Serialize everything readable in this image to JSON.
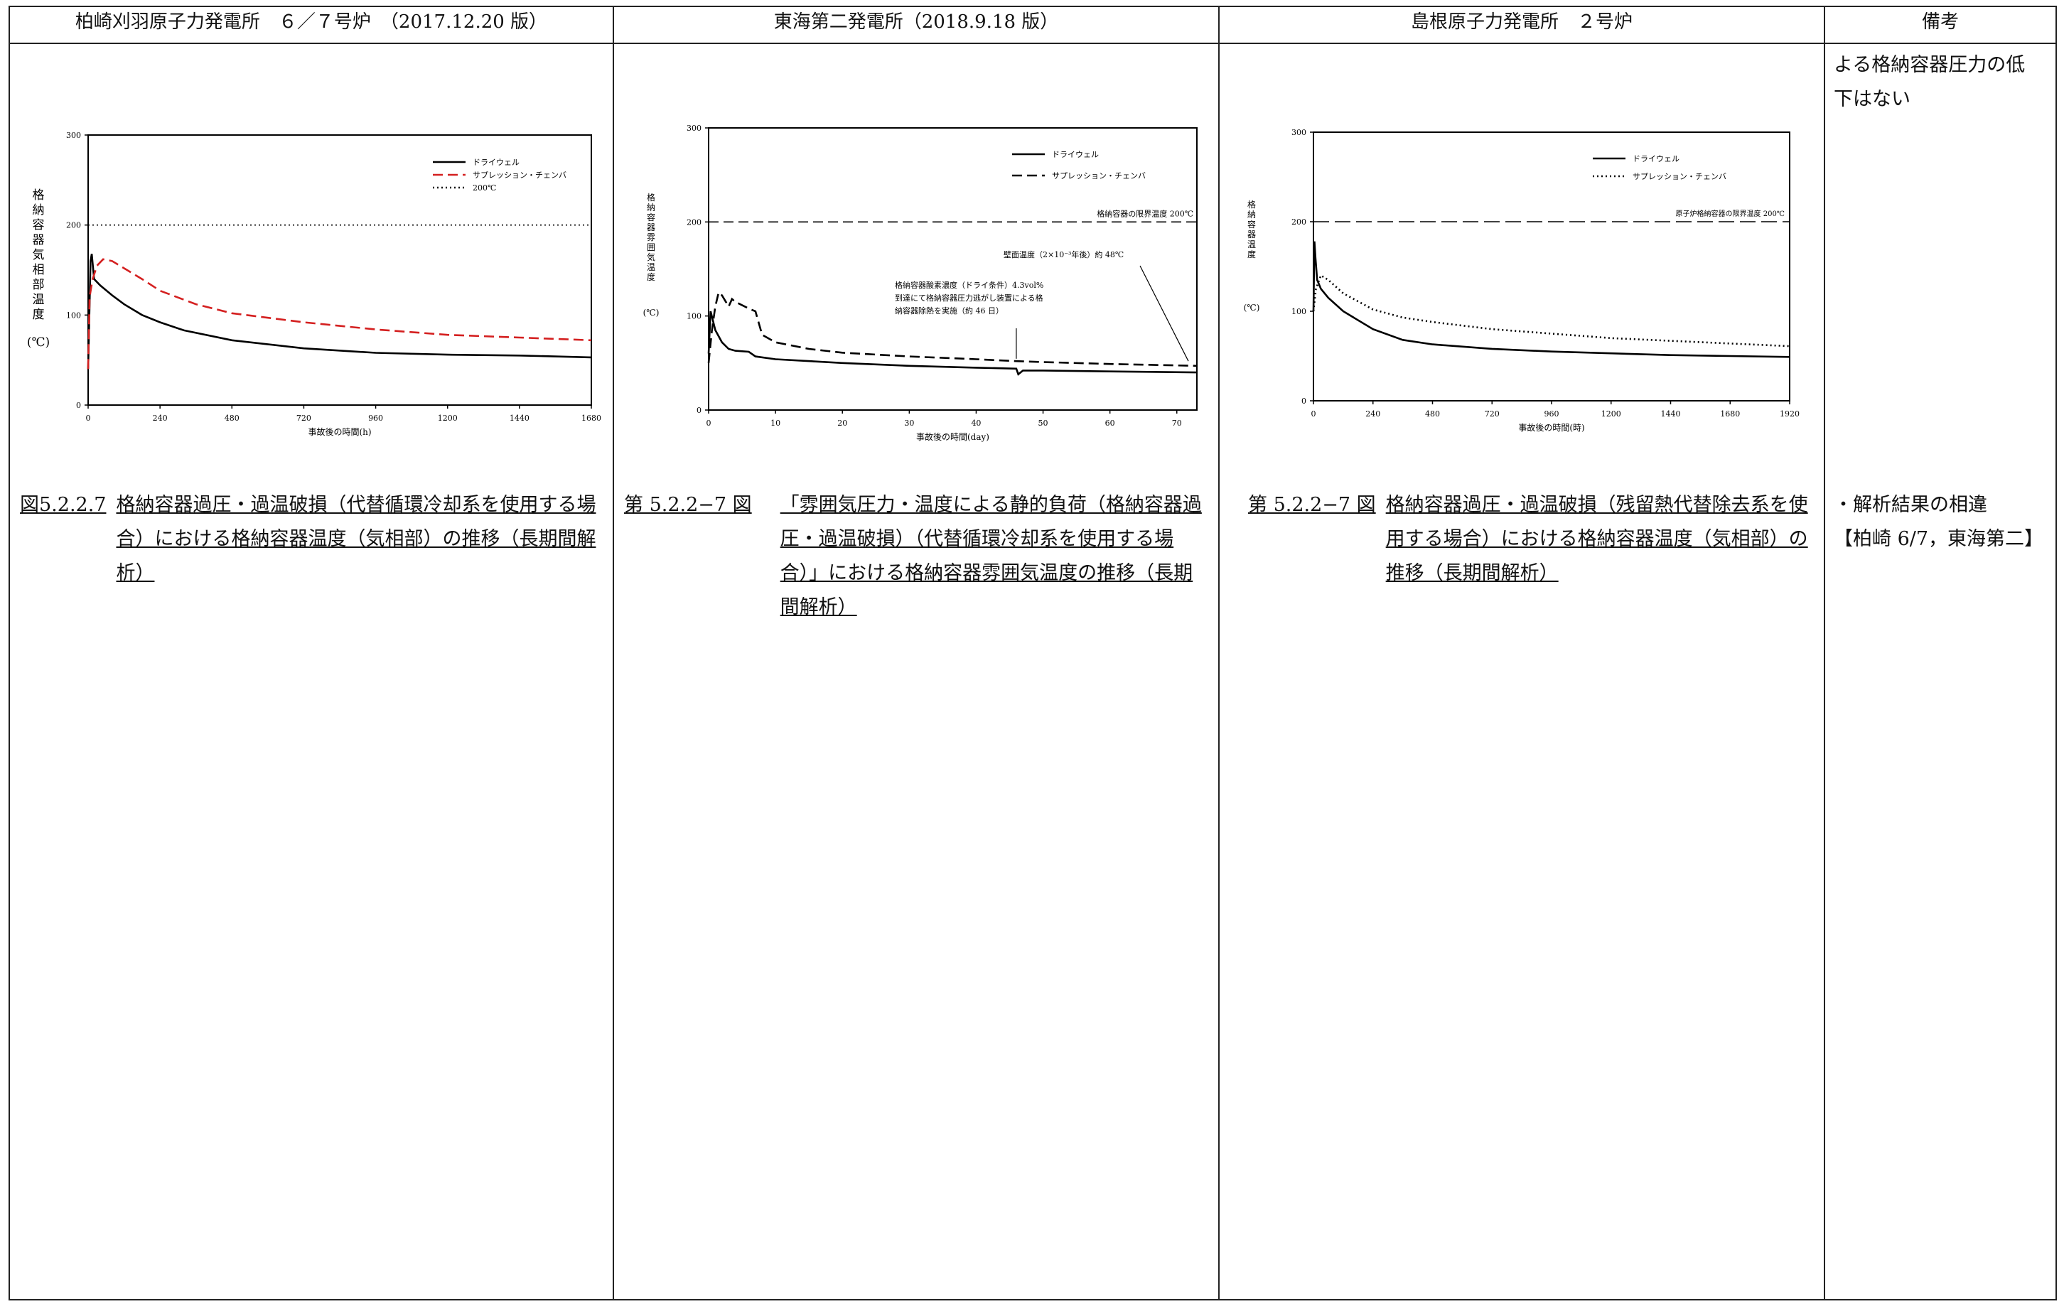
{
  "headers": [
    "柏崎刈羽原子力発電所　６／７号炉　（2017.12.20 版）",
    "東海第二発電所（2018.9.18 版）",
    "島根原子力発電所　２号炉",
    "備考"
  ],
  "col1": {
    "caption_label": "図5.2.2.7",
    "caption_text": "格納容器過圧・過温破損（代替循環冷却系を使用する場合）における格納容器温度（気相部）の推移（長期間解析）",
    "chart_data": {
      "type": "line",
      "ylabel": "格納容器気相部温度（℃）",
      "ylabel_chars": [
        "格",
        "納",
        "容",
        "器",
        "気",
        "相",
        "部",
        "温",
        "度"
      ],
      "yunit": "(℃)",
      "xlabel": "事故後の時間(h)",
      "xlim": [
        0,
        1680
      ],
      "ylim": [
        0,
        300
      ],
      "xticks": [
        "0",
        "240",
        "480",
        "720",
        "960",
        "1200",
        "1440",
        "1680"
      ],
      "yticks": [
        "0",
        "100",
        "200",
        "300"
      ],
      "legend_position": "top-right",
      "series": [
        {
          "name": "ドライウェル",
          "color": "#000000",
          "style": "solid",
          "x": [
            0,
            8,
            12,
            20,
            40,
            80,
            120,
            180,
            240,
            320,
            480,
            720,
            960,
            1200,
            1440,
            1680
          ],
          "y": [
            40,
            160,
            168,
            140,
            133,
            122,
            112,
            100,
            92,
            83,
            72,
            63,
            58,
            56,
            55,
            53
          ]
        },
        {
          "name": "サプレッション・チェンバ",
          "color": "#d42020",
          "style": "dash",
          "x": [
            0,
            5,
            15,
            30,
            50,
            80,
            120,
            180,
            240,
            360,
            480,
            720,
            960,
            1200,
            1440,
            1680
          ],
          "y": [
            40,
            120,
            140,
            155,
            162,
            160,
            152,
            140,
            127,
            112,
            102,
            92,
            84,
            78,
            75,
            72
          ]
        },
        {
          "name": "200℃",
          "color": "#000000",
          "style": "dot",
          "x": [
            0,
            1680
          ],
          "y": [
            200,
            200
          ]
        }
      ]
    }
  },
  "col2": {
    "caption_label": "第 5.2.2−7 図",
    "caption_text": "「雰囲気圧力・温度による静的負荷（格納容器過圧・過温破損）（代替循環冷却系を使用する場合）」における格納容器雰囲気温度の推移（長期間解析）",
    "chart_data": {
      "type": "line",
      "ylabel": "格納容器雰囲気温度（℃）",
      "ylabel_chars": [
        "格",
        "納",
        "容",
        "器",
        "雰",
        "囲",
        "気",
        "温",
        "度"
      ],
      "yunit": "(℃)",
      "xlabel": "事故後の時間(day)",
      "xlim": [
        0,
        73
      ],
      "ylim": [
        0,
        300
      ],
      "xticks": [
        "0",
        "10",
        "20",
        "30",
        "40",
        "50",
        "60",
        "70"
      ],
      "yticks": [
        "0",
        "100",
        "200",
        "300"
      ],
      "legend_position": "top-right",
      "limit_label": "格納容器の限界温度 200℃",
      "annotation_wall": "壁面温度（2×10⁻³年後）約 48℃",
      "annotation_vent": [
        "格納容器酸素濃度（ドライ条件）4.3vol%",
        "到達にて格納容器圧力逃がし装置による格",
        "納容器除熱を実施（約 46 日）"
      ],
      "series": [
        {
          "name": "ドライウェル",
          "color": "#000000",
          "style": "solid",
          "x": [
            0,
            0.3,
            1,
            2,
            3,
            4,
            6,
            7,
            10,
            20,
            30,
            40,
            46,
            46.3,
            47,
            50,
            60,
            73
          ],
          "y": [
            60,
            105,
            85,
            72,
            65,
            63,
            62,
            57,
            54,
            50,
            47,
            45,
            44,
            38,
            42,
            42,
            41,
            40
          ]
        },
        {
          "name": "サプレッション・チェンバ",
          "color": "#000000",
          "style": "dash",
          "x": [
            0,
            0.5,
            1,
            1.5,
            2,
            3,
            3.5,
            4,
            6,
            7,
            8,
            10,
            15,
            20,
            30,
            40,
            46,
            50,
            60,
            73
          ],
          "y": [
            50,
            85,
            110,
            125,
            122,
            110,
            118,
            115,
            108,
            105,
            80,
            72,
            65,
            61,
            57,
            54,
            52,
            51,
            49,
            47
          ]
        },
        {
          "name": "格納容器の限界温度 200℃",
          "color": "#000000",
          "style": "dash",
          "x": [
            0,
            73
          ],
          "y": [
            200,
            200
          ]
        }
      ]
    }
  },
  "col3": {
    "caption_label": "第 5.2.2−7 図",
    "caption_text": "格納容器過圧・過温破損（残留熱代替除去系を使用する場合）における格納容器温度（気相部）の推移（長期間解析）",
    "chart_data": {
      "type": "line",
      "ylabel": "格納容器温度（℃）",
      "ylabel_chars": [
        "格",
        "納",
        "容",
        "器",
        "温",
        "度"
      ],
      "yunit": "(℃)",
      "xlabel": "事故後の時間(時)",
      "xlim": [
        0,
        1920
      ],
      "ylim": [
        0,
        300
      ],
      "xticks": [
        "0",
        "240",
        "480",
        "720",
        "960",
        "1200",
        "1440",
        "1680",
        "1920"
      ],
      "yticks": [
        "0",
        "100",
        "200",
        "300"
      ],
      "legend_position": "top-right",
      "limit_label": "原子炉格納容器の限界温度 200℃",
      "series": [
        {
          "name": "ドライウェル",
          "color": "#000000",
          "style": "solid",
          "x": [
            0,
            4,
            8,
            15,
            30,
            60,
            120,
            240,
            360,
            480,
            720,
            960,
            1200,
            1440,
            1680,
            1920
          ],
          "y": [
            100,
            178,
            160,
            135,
            125,
            115,
            100,
            80,
            68,
            63,
            58,
            55,
            53,
            51,
            50,
            49
          ]
        },
        {
          "name": "サプレッション・チェンバ",
          "color": "#000000",
          "style": "dot",
          "x": [
            0,
            10,
            30,
            60,
            120,
            240,
            360,
            480,
            720,
            960,
            1200,
            1440,
            1680,
            1920
          ],
          "y": [
            100,
            125,
            140,
            135,
            120,
            102,
            93,
            88,
            80,
            75,
            70,
            67,
            64,
            61
          ]
        },
        {
          "name": "原子炉格納容器の限界温度 200℃",
          "color": "#000000",
          "style": "longdash",
          "x": [
            0,
            1920
          ],
          "y": [
            200,
            200
          ]
        }
      ]
    }
  },
  "remarks": {
    "top": [
      "よる格納容器圧力の低",
      "下はない"
    ],
    "bottom": [
      "・解析結果の相違",
      "【柏崎 6/7，東海第二】"
    ]
  }
}
